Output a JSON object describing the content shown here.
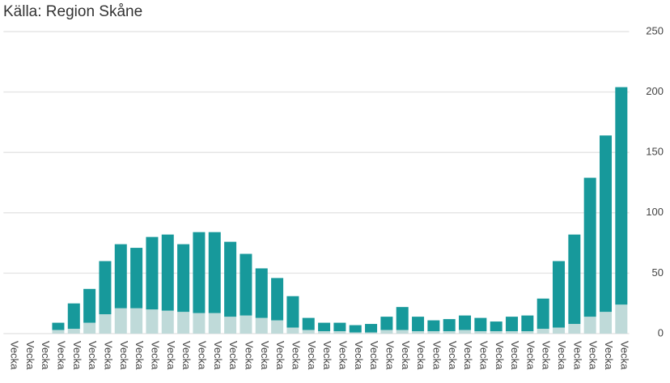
{
  "chart_data": {
    "type": "stacked_bar",
    "title": "Källa: Region Skåne",
    "categories": [
      "Vecka",
      "Vecka",
      "Vecka",
      "Vecka",
      "Vecka",
      "Vecka",
      "Vecka",
      "Vecka",
      "Vecka",
      "Vecka",
      "Vecka",
      "Vecka",
      "Vecka",
      "Vecka",
      "Vecka",
      "Vecka",
      "Vecka",
      "Vecka",
      "Vecka",
      "Vecka",
      "Vecka",
      "Vecka",
      "Vecka",
      "Vecka",
      "Vecka",
      "Vecka",
      "Vecka",
      "Vecka",
      "Vecka",
      "Vecka",
      "Vecka",
      "Vecka",
      "Vecka",
      "Vecka",
      "Vecka",
      "Vecka",
      "Vecka",
      "Vecka",
      "Vecka",
      "Vecka"
    ],
    "series": [
      {
        "color": "#bfdad9",
        "values": [
          0,
          0,
          0,
          3,
          4,
          9,
          16,
          21,
          21,
          20,
          19,
          18,
          17,
          17,
          14,
          15,
          13,
          11,
          5,
          3,
          2,
          2,
          1,
          1,
          3,
          3,
          2,
          2,
          2,
          3,
          2,
          2,
          2,
          2,
          4,
          5,
          8,
          14,
          18,
          24
        ]
      },
      {
        "color": "#17999b",
        "values": [
          0,
          0,
          0,
          6,
          21,
          28,
          44,
          53,
          50,
          60,
          63,
          56,
          67,
          67,
          62,
          51,
          41,
          35,
          26,
          10,
          7,
          7,
          6,
          7,
          11,
          19,
          12,
          9,
          10,
          12,
          11,
          8,
          12,
          13,
          25,
          55,
          74,
          115,
          146,
          180
        ]
      }
    ],
    "ylim": [
      0,
      250
    ],
    "yticks": [
      0,
      50,
      100,
      150,
      200,
      250
    ],
    "grid": true,
    "y_axis_side": "right"
  }
}
